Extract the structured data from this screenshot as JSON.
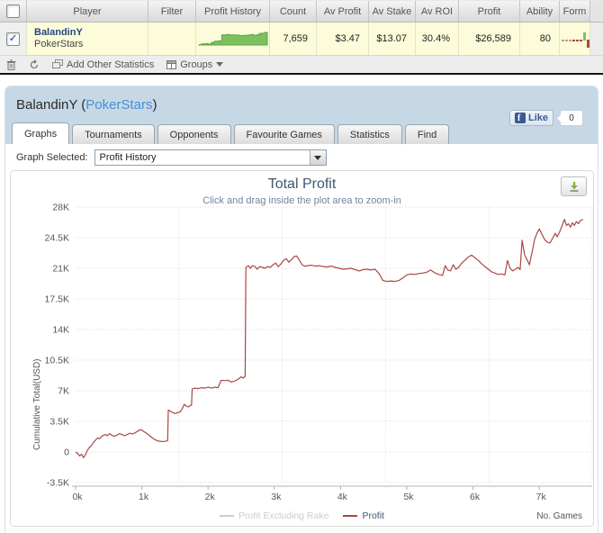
{
  "table": {
    "headers": [
      "",
      "Player",
      "Filter",
      "Profit History",
      "Count",
      "Av Profit",
      "Av Stake",
      "Av ROI",
      "Profit",
      "Ability",
      "Form"
    ],
    "row": {
      "checked": true,
      "player_name": "BalandinY",
      "site": "PokerStars",
      "filter": "",
      "count": "7,659",
      "av_profit": "$3.47",
      "av_stake": "$13.07",
      "av_roi": "30.4%",
      "profit": "$26,589",
      "ability": "80"
    }
  },
  "toolbar": {
    "add_other_statistics_label": "Add Other Statistics",
    "groups_label": "Groups"
  },
  "panel": {
    "title_player": "BalandinY",
    "title_open_paren": " (",
    "title_site": "PokerStars",
    "title_close_paren": ")",
    "tabs": [
      {
        "label": "Graphs",
        "active": true
      },
      {
        "label": "Tournaments",
        "active": false
      },
      {
        "label": "Opponents",
        "active": false
      },
      {
        "label": "Favourite Games",
        "active": false
      },
      {
        "label": "Statistics",
        "active": false
      },
      {
        "label": "Find",
        "active": false
      }
    ],
    "facebook": {
      "icon_letter": "f",
      "label": "Like",
      "count": "0"
    },
    "graph_selected_label": "Graph Selected:",
    "graph_selected_value": "Profit History"
  },
  "chart_data": {
    "type": "line",
    "title": "Total Profit",
    "subtitle": "Click and drag inside the plot area to zoom-in",
    "ylabel": "Cumulative Total(USD)",
    "xlabel": "No. Games",
    "x_unit": "thousand games",
    "y_unit": "thousand USD",
    "x_axis": {
      "tick_values": [
        0,
        1,
        2,
        3,
        4,
        5,
        6,
        7
      ],
      "tick_labels": [
        "0k",
        "1k",
        "2k",
        "3k",
        "4k",
        "5k",
        "6k",
        "7k"
      ],
      "max": 7.8,
      "gridline_interval": 1.56
    },
    "y_axis": {
      "tick_values": [
        -3.5,
        0,
        3.5,
        7,
        10.5,
        14,
        17.5,
        21,
        24.5,
        28
      ],
      "tick_labels": [
        "-3.5K",
        "0",
        "3.5K",
        "7K",
        "10.5K",
        "14K",
        "17.5K",
        "21K",
        "24.5K",
        "28K"
      ],
      "min": -3.5,
      "max": 28
    },
    "grid": "dotted",
    "legend_position": "bottom-center",
    "legend": [
      {
        "name": "Profit Excluding Rake",
        "color": "#cccccc",
        "visible": false
      },
      {
        "name": "Profit",
        "color": "#AA4643",
        "visible": true
      }
    ],
    "series": [
      {
        "name": "Profit",
        "color": "#AA4643",
        "points": [
          [
            0,
            0
          ],
          [
            0.03,
            -0.15
          ],
          [
            0.06,
            -0.45
          ],
          [
            0.09,
            -0.25
          ],
          [
            0.12,
            -0.65
          ],
          [
            0.15,
            -0.3
          ],
          [
            0.18,
            0.2
          ],
          [
            0.21,
            0.55
          ],
          [
            0.24,
            0.75
          ],
          [
            0.27,
            1.1
          ],
          [
            0.3,
            1.35
          ],
          [
            0.33,
            1.6
          ],
          [
            0.36,
            1.5
          ],
          [
            0.39,
            1.75
          ],
          [
            0.42,
            1.9
          ],
          [
            0.45,
            2
          ],
          [
            0.48,
            1.85
          ],
          [
            0.51,
            2.1
          ],
          [
            0.54,
            1.95
          ],
          [
            0.58,
            1.8
          ],
          [
            0.62,
            1.9
          ],
          [
            0.66,
            2.1
          ],
          [
            0.7,
            2
          ],
          [
            0.74,
            1.85
          ],
          [
            0.78,
            2
          ],
          [
            0.82,
            2.15
          ],
          [
            0.86,
            2.05
          ],
          [
            0.9,
            2.2
          ],
          [
            0.94,
            2.4
          ],
          [
            0.98,
            2.55
          ],
          [
            1.01,
            2.45
          ],
          [
            1.04,
            2.3
          ],
          [
            1.08,
            2.1
          ],
          [
            1.12,
            1.85
          ],
          [
            1.16,
            1.6
          ],
          [
            1.2,
            1.4
          ],
          [
            1.25,
            1.25
          ],
          [
            1.3,
            1.2
          ],
          [
            1.35,
            1.2
          ],
          [
            1.39,
            1.3
          ],
          [
            1.4,
            4.8
          ],
          [
            1.43,
            4.65
          ],
          [
            1.47,
            4.5
          ],
          [
            1.5,
            4.4
          ],
          [
            1.54,
            4.5
          ],
          [
            1.58,
            4.6
          ],
          [
            1.61,
            4.95
          ],
          [
            1.64,
            5.45
          ],
          [
            1.67,
            5.25
          ],
          [
            1.7,
            5.15
          ],
          [
            1.73,
            5.3
          ],
          [
            1.75,
            5.35
          ],
          [
            1.76,
            7.2
          ],
          [
            1.8,
            7.3
          ],
          [
            1.85,
            7.25
          ],
          [
            1.9,
            7.35
          ],
          [
            1.95,
            7.3
          ],
          [
            2,
            7.4
          ],
          [
            2.05,
            7.3
          ],
          [
            2.1,
            7.4
          ],
          [
            2.15,
            7.35
          ],
          [
            2.2,
            8.2
          ],
          [
            2.25,
            8.15
          ],
          [
            2.3,
            8.2
          ],
          [
            2.35,
            8
          ],
          [
            2.4,
            8.1
          ],
          [
            2.45,
            8.3
          ],
          [
            2.5,
            8.6
          ],
          [
            2.53,
            8.45
          ],
          [
            2.56,
            8.65
          ],
          [
            2.57,
            21.1
          ],
          [
            2.61,
            21.3
          ],
          [
            2.64,
            21
          ],
          [
            2.67,
            21.3
          ],
          [
            2.71,
            21.2
          ],
          [
            2.74,
            20.9
          ],
          [
            2.78,
            21.2
          ],
          [
            2.82,
            21.1
          ],
          [
            2.86,
            21
          ],
          [
            2.9,
            21.2
          ],
          [
            2.94,
            21.1
          ],
          [
            2.98,
            21.4
          ],
          [
            3.02,
            21.6
          ],
          [
            3.06,
            21.2
          ],
          [
            3.1,
            21.5
          ],
          [
            3.14,
            21.9
          ],
          [
            3.18,
            22.1
          ],
          [
            3.22,
            21.7
          ],
          [
            3.26,
            22
          ],
          [
            3.3,
            22.35
          ],
          [
            3.34,
            22.4
          ],
          [
            3.38,
            21.9
          ],
          [
            3.42,
            21.4
          ],
          [
            3.46,
            21.25
          ],
          [
            3.5,
            21.3
          ],
          [
            3.56,
            21.35
          ],
          [
            3.62,
            21.25
          ],
          [
            3.68,
            21.3
          ],
          [
            3.74,
            21.2
          ],
          [
            3.8,
            21.15
          ],
          [
            3.86,
            21.25
          ],
          [
            3.92,
            21.1
          ],
          [
            3.98,
            21
          ],
          [
            4.04,
            20.9
          ],
          [
            4.1,
            20.95
          ],
          [
            4.16,
            21
          ],
          [
            4.22,
            20.85
          ],
          [
            4.28,
            20.7
          ],
          [
            4.34,
            20.85
          ],
          [
            4.4,
            20.9
          ],
          [
            4.46,
            20.8
          ],
          [
            4.52,
            20.9
          ],
          [
            4.58,
            20.4
          ],
          [
            4.64,
            19.6
          ],
          [
            4.7,
            19.5
          ],
          [
            4.76,
            19.55
          ],
          [
            4.82,
            19.5
          ],
          [
            4.88,
            19.6
          ],
          [
            4.94,
            19.9
          ],
          [
            5,
            20.25
          ],
          [
            5.06,
            20.35
          ],
          [
            5.12,
            20.3
          ],
          [
            5.18,
            20.4
          ],
          [
            5.24,
            20.45
          ],
          [
            5.3,
            20.55
          ],
          [
            5.36,
            20.8
          ],
          [
            5.42,
            20.5
          ],
          [
            5.48,
            20.3
          ],
          [
            5.54,
            20.2
          ],
          [
            5.58,
            21.3
          ],
          [
            5.62,
            20.8
          ],
          [
            5.66,
            20.7
          ],
          [
            5.7,
            21.4
          ],
          [
            5.74,
            20.9
          ],
          [
            5.78,
            21.1
          ],
          [
            5.83,
            21.6
          ],
          [
            5.88,
            21.95
          ],
          [
            5.93,
            22.3
          ],
          [
            5.98,
            22.5
          ],
          [
            6.03,
            22.2
          ],
          [
            6.08,
            21.9
          ],
          [
            6.13,
            21.5
          ],
          [
            6.18,
            21.2
          ],
          [
            6.23,
            20.9
          ],
          [
            6.28,
            20.6
          ],
          [
            6.33,
            20.45
          ],
          [
            6.38,
            20.3
          ],
          [
            6.43,
            20.35
          ],
          [
            6.48,
            20.25
          ],
          [
            6.52,
            21.9
          ],
          [
            6.56,
            21
          ],
          [
            6.6,
            20.7
          ],
          [
            6.64,
            20.9
          ],
          [
            6.68,
            21.1
          ],
          [
            6.71,
            20.85
          ],
          [
            6.74,
            24.2
          ],
          [
            6.78,
            22.5
          ],
          [
            6.82,
            21.9
          ],
          [
            6.85,
            21.4
          ],
          [
            6.89,
            22.8
          ],
          [
            6.93,
            24.3
          ],
          [
            6.97,
            25.1
          ],
          [
            7,
            25.5
          ],
          [
            7.04,
            24.9
          ],
          [
            7.08,
            24.3
          ],
          [
            7.12,
            24
          ],
          [
            7.16,
            23.9
          ],
          [
            7.2,
            24.4
          ],
          [
            7.24,
            25
          ],
          [
            7.27,
            24.6
          ],
          [
            7.31,
            25.2
          ],
          [
            7.35,
            26
          ],
          [
            7.38,
            26.6
          ],
          [
            7.41,
            25.9
          ],
          [
            7.44,
            26.1
          ],
          [
            7.47,
            25.7
          ],
          [
            7.5,
            26.2
          ],
          [
            7.53,
            25.9
          ],
          [
            7.56,
            26.35
          ],
          [
            7.59,
            26.1
          ],
          [
            7.62,
            26.45
          ],
          [
            7.66,
            26.6
          ]
        ]
      }
    ]
  },
  "colors": {
    "row_highlight": "#fcfcda",
    "sparkline_green": "#7cc15e",
    "sparkline_green_edge": "#61a247",
    "profit_line": "#AA4643",
    "panel_blue": "#c6d8e5",
    "title_slate": "#3E576F",
    "subtitle_gray": "#6D869F",
    "form_dash_gray": "#b89f97",
    "form_dash_red": "#aa4643",
    "form_bar_green": "#82c25e",
    "form_bar_red": "#b0493f"
  }
}
